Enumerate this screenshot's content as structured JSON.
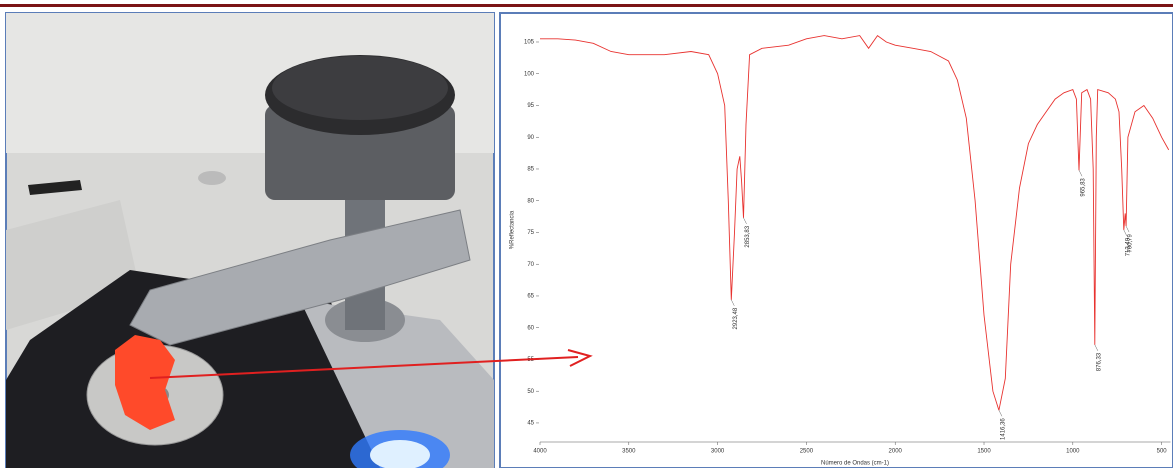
{
  "chart_data": {
    "type": "line",
    "xlabel": "Número de Ondas (cm-1)",
    "ylabel": "%Reflectancia",
    "color": "#e8322f",
    "xlim": [
      4000,
      450
    ],
    "ylim": [
      42,
      107
    ],
    "xticks": [
      4000,
      3500,
      3000,
      2500,
      2000,
      1500,
      1000,
      500
    ],
    "yticks": [
      45,
      50,
      55,
      60,
      65,
      70,
      75,
      80,
      85,
      90,
      95,
      100,
      105
    ],
    "x": [
      4000,
      3900,
      3800,
      3700,
      3600,
      3500,
      3300,
      3150,
      3050,
      3000,
      2960,
      2940,
      2923,
      2905,
      2890,
      2875,
      2865,
      2854,
      2840,
      2820,
      2750,
      2600,
      2500,
      2400,
      2300,
      2200,
      2150,
      2100,
      2050,
      2000,
      1900,
      1800,
      1700,
      1650,
      1600,
      1550,
      1500,
      1450,
      1416,
      1380,
      1350,
      1300,
      1250,
      1200,
      1150,
      1100,
      1050,
      1000,
      980,
      965,
      950,
      920,
      900,
      885,
      876,
      868,
      860,
      800,
      760,
      740,
      725,
      713,
      705,
      700,
      690,
      650,
      600,
      550,
      500,
      460
    ],
    "values": [
      105.5,
      105.5,
      105.3,
      104.8,
      103.5,
      103,
      103,
      103.5,
      103,
      100,
      95,
      80,
      64.4,
      75,
      85,
      87,
      83,
      77.3,
      92,
      103,
      104,
      104.5,
      105.5,
      106,
      105.5,
      106,
      104,
      106,
      105,
      104.5,
      104,
      103.5,
      102,
      99,
      93,
      80,
      62,
      50,
      47,
      52,
      70,
      82,
      89,
      92,
      94,
      96,
      97,
      97.5,
      96,
      84.8,
      97,
      97.5,
      96,
      85,
      57.3,
      90,
      97.5,
      97,
      96,
      94,
      85,
      75.4,
      78,
      76,
      90,
      94,
      95,
      93,
      90,
      88
    ],
    "annotations": [
      {
        "x": 2923,
        "y": 64.4,
        "label": "2923,48"
      },
      {
        "x": 2854,
        "y": 77.3,
        "label": "2853,83"
      },
      {
        "x": 1416,
        "y": 47,
        "label": "1416,36"
      },
      {
        "x": 965,
        "y": 84.8,
        "label": "965,83"
      },
      {
        "x": 876,
        "y": 57.3,
        "label": "876,33"
      },
      {
        "x": 713,
        "y": 75.4,
        "label": "713,48"
      },
      {
        "x": 700,
        "y": 76,
        "label": "700,79"
      }
    ]
  }
}
